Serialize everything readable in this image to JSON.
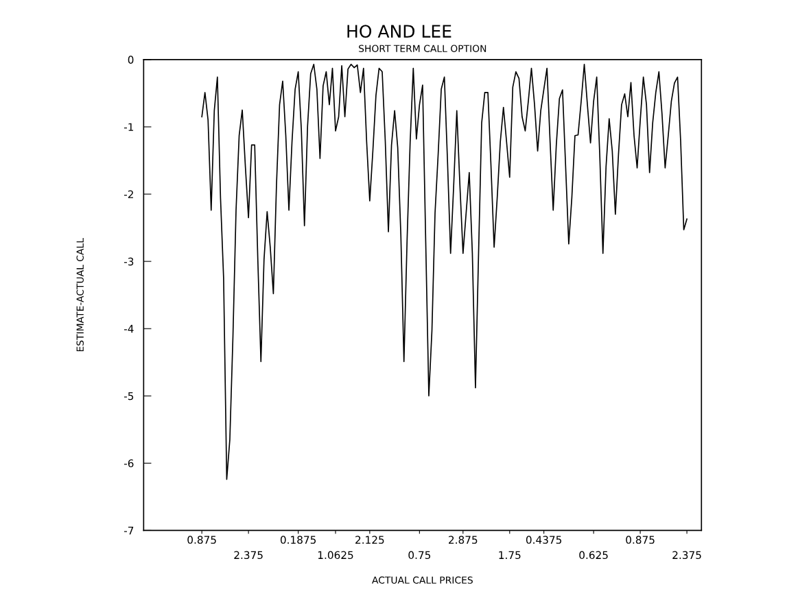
{
  "chart_data": {
    "type": "line",
    "title": "HO AND LEE",
    "subtitle": "SHORT TERM CALL OPTION",
    "xlabel": "ACTUAL CALL PRICES",
    "ylabel": "ESTIMATE-ACTUAL CALL",
    "ylim": [
      -7,
      0
    ],
    "yticks": [
      0,
      -1,
      -2,
      -3,
      -4,
      -5,
      -6,
      -7
    ],
    "categories": [
      "0.875",
      null,
      null,
      null,
      null,
      null,
      null,
      null,
      null,
      null,
      null,
      null,
      null,
      null,
      null,
      "2.375",
      null,
      null,
      null,
      null,
      null,
      null,
      null,
      null,
      null,
      null,
      null,
      null,
      null,
      null,
      null,
      "0.1875",
      null,
      null,
      null,
      null,
      null,
      null,
      null,
      null,
      null,
      null,
      null,
      "1.0625",
      null,
      null,
      null,
      null,
      null,
      null,
      null,
      null,
      null,
      null,
      "2.125",
      null,
      null,
      null,
      null,
      null,
      null,
      null,
      null,
      null,
      null,
      null,
      null,
      null,
      null,
      null,
      "0.75",
      null,
      null,
      null,
      null,
      null,
      null,
      null,
      null,
      null,
      null,
      null,
      null,
      null,
      "2.875",
      null,
      null,
      null,
      null,
      null,
      null,
      null,
      null,
      null,
      null,
      null,
      null,
      null,
      null,
      "1.75",
      null,
      null,
      null,
      null,
      null,
      null,
      null,
      null,
      null,
      null,
      "0.4375",
      null,
      null,
      null,
      null,
      null,
      null,
      null,
      null,
      null,
      null,
      null,
      null,
      null,
      null,
      null,
      "0.625",
      null,
      null,
      null,
      null,
      null,
      null,
      null,
      null,
      null,
      null,
      null,
      null,
      null,
      null,
      "0.875",
      null,
      null,
      null,
      null,
      null,
      null,
      null,
      null,
      null,
      null,
      null,
      null,
      null,
      null,
      "2.375"
    ],
    "grid": false,
    "legend": false,
    "marker": "none",
    "line_style": "solid",
    "series": [
      {
        "color": "#000000",
        "values": [
          -0.85,
          -0.49,
          -0.9,
          -2.24,
          -0.76,
          -0.26,
          -2.05,
          -3.25,
          -6.24,
          -5.65,
          -4.12,
          -2.24,
          -1.13,
          -0.75,
          -1.59,
          -2.35,
          -1.27,
          -1.27,
          -2.97,
          -4.49,
          -2.97,
          -2.26,
          -2.79,
          -3.48,
          -1.87,
          -0.67,
          -0.32,
          -1.13,
          -2.24,
          -1.22,
          -0.44,
          -0.18,
          -1.04,
          -2.47,
          -0.99,
          -0.21,
          -0.07,
          -0.44,
          -1.47,
          -0.39,
          -0.18,
          -0.67,
          -0.13,
          -1.06,
          -0.85,
          -0.09,
          -0.85,
          -0.14,
          -0.07,
          -0.12,
          -0.08,
          -0.49,
          -0.13,
          -1.22,
          -2.1,
          -1.36,
          -0.53,
          -0.13,
          -0.18,
          -1.22,
          -2.56,
          -1.27,
          -0.76,
          -1.31,
          -2.6,
          -4.49,
          -2.7,
          -1.22,
          -0.13,
          -1.18,
          -0.67,
          -0.38,
          -2.7,
          -5.0,
          -4.03,
          -2.28,
          -1.41,
          -0.44,
          -0.26,
          -1.5,
          -2.88,
          -1.87,
          -0.76,
          -1.87,
          -2.88,
          -2.28,
          -1.68,
          -2.88,
          -4.88,
          -2.88,
          -0.94,
          -0.49,
          -0.49,
          -1.59,
          -2.79,
          -2.05,
          -1.22,
          -0.71,
          -1.22,
          -1.75,
          -0.41,
          -0.18,
          -0.28,
          -0.85,
          -1.06,
          -0.62,
          -0.13,
          -0.67,
          -1.36,
          -0.76,
          -0.44,
          -0.13,
          -1.22,
          -2.24,
          -1.27,
          -0.58,
          -0.45,
          -1.59,
          -2.74,
          -2.05,
          -1.13,
          -1.12,
          -0.62,
          -0.07,
          -0.67,
          -1.24,
          -0.62,
          -0.26,
          -1.45,
          -2.88,
          -1.59,
          -0.88,
          -1.36,
          -2.3,
          -1.41,
          -0.67,
          -0.51,
          -0.85,
          -0.34,
          -1.13,
          -1.61,
          -0.9,
          -0.26,
          -0.67,
          -1.68,
          -0.94,
          -0.49,
          -0.18,
          -0.81,
          -1.61,
          -1.13,
          -0.62,
          -0.35,
          -0.26,
          -1.22,
          -2.53,
          -2.37
        ]
      }
    ]
  }
}
